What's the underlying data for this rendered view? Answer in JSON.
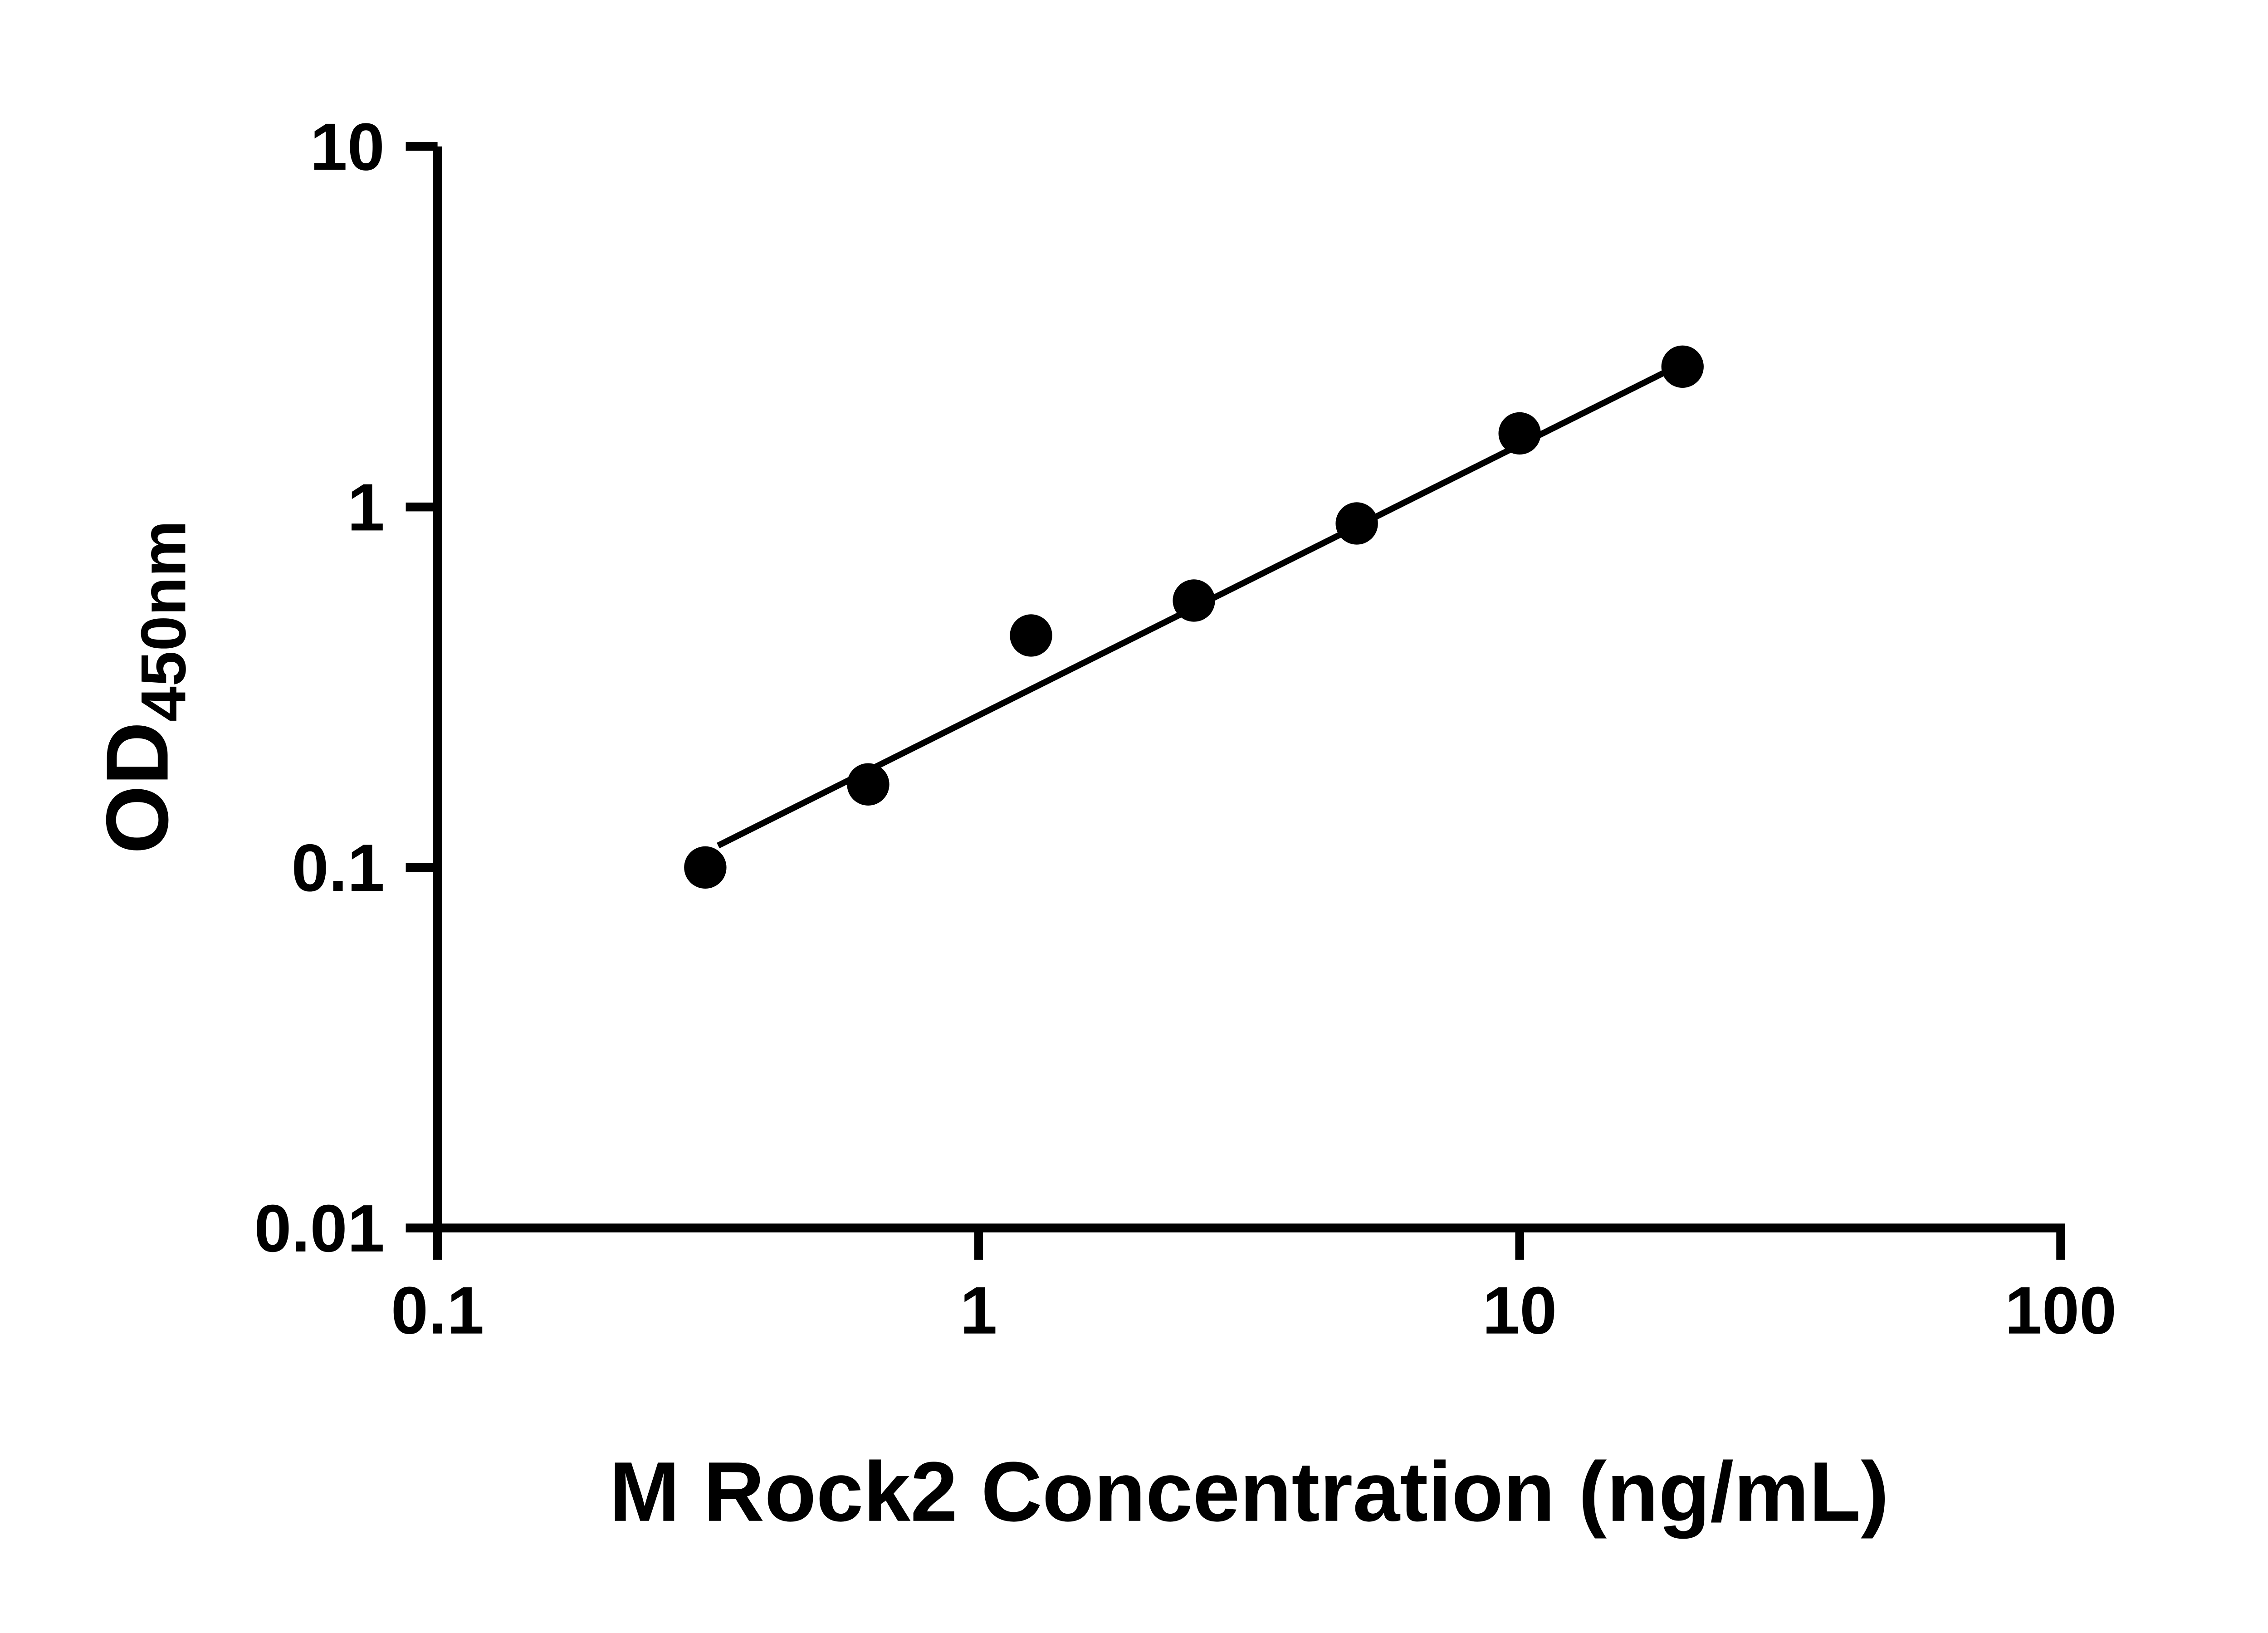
{
  "page": {
    "background": "#ffffff"
  },
  "chart_data": {
    "type": "scatter",
    "title": "",
    "xlabel": "M Rock2 Concentration (ng/mL)",
    "ylabel_main": "OD",
    "ylabel_sub": "450nm",
    "x_scale": "log",
    "y_scale": "log",
    "xlim": [
      0.1,
      100
    ],
    "ylim": [
      0.01,
      10
    ],
    "x_ticks": [
      0.1,
      1,
      10,
      100
    ],
    "x_tick_labels": [
      "0.1",
      "1",
      "10",
      "100"
    ],
    "y_ticks": [
      0.01,
      0.1,
      1,
      10
    ],
    "y_tick_labels": [
      "0.01",
      "0.1",
      "1",
      "10"
    ],
    "grid": "off",
    "legend": "none",
    "points": {
      "x": [
        0.3125,
        0.625,
        1.25,
        2.5,
        5,
        10,
        20
      ],
      "y": [
        0.1,
        0.17,
        0.44,
        0.55,
        0.9,
        1.6,
        2.45
      ]
    },
    "trendline": {
      "x": [
        0.33,
        20
      ],
      "y": [
        0.115,
        2.5
      ]
    },
    "marker_color": "#000000",
    "line_color": "#000000",
    "axis_color": "#000000"
  }
}
